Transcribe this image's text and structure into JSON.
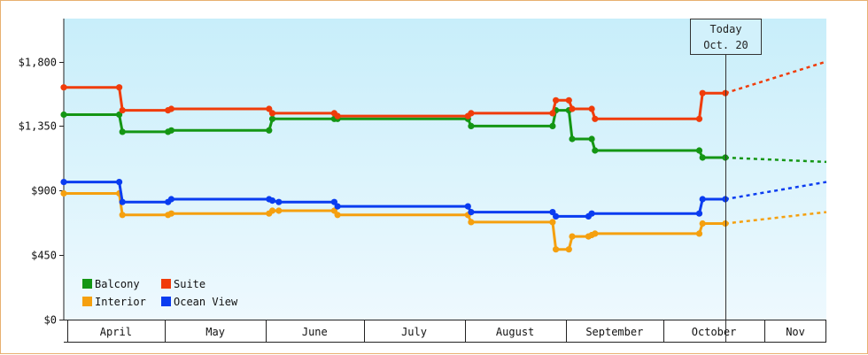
{
  "chart_data": {
    "type": "line",
    "y_unit": "USD",
    "ylim": [
      0,
      2100
    ],
    "yticks": [
      {
        "value": 0,
        "label": "$0"
      },
      {
        "value": 450,
        "label": "$450"
      },
      {
        "value": 900,
        "label": "$900"
      },
      {
        "value": 1350,
        "label": "$1,350"
      },
      {
        "value": 1800,
        "label": "$1,800"
      }
    ],
    "xlim": [
      "2016-03-31",
      "2016-11-20"
    ],
    "months": [
      {
        "label": "April",
        "start": "2016-04-01",
        "end": "2016-05-01"
      },
      {
        "label": "May",
        "start": "2016-05-01",
        "end": "2016-06-01"
      },
      {
        "label": "June",
        "start": "2016-06-01",
        "end": "2016-07-01"
      },
      {
        "label": "July",
        "start": "2016-07-01",
        "end": "2016-08-01"
      },
      {
        "label": "August",
        "start": "2016-08-01",
        "end": "2016-09-01"
      },
      {
        "label": "September",
        "start": "2016-09-01",
        "end": "2016-10-01"
      },
      {
        "label": "October",
        "start": "2016-10-01",
        "end": "2016-11-01"
      },
      {
        "label": "Nov",
        "start": "2016-11-01",
        "end": "2016-11-20"
      }
    ],
    "today": {
      "date": "2016-10-20",
      "line1": "Today",
      "line2": "Oct. 20"
    },
    "grid": "vertical month separators",
    "legend_position": "bottom-left",
    "series": [
      {
        "name": "Balcony",
        "color": "#149614",
        "points": [
          [
            "2016-03-31",
            1430
          ],
          [
            "2016-04-17",
            1430
          ],
          [
            "2016-04-18",
            1310
          ],
          [
            "2016-05-02",
            1310
          ],
          [
            "2016-05-03",
            1320
          ],
          [
            "2016-06-02",
            1320
          ],
          [
            "2016-06-03",
            1400
          ],
          [
            "2016-06-22",
            1400
          ],
          [
            "2016-06-23",
            1400
          ],
          [
            "2016-08-02",
            1400
          ],
          [
            "2016-08-03",
            1350
          ],
          [
            "2016-08-28",
            1350
          ],
          [
            "2016-08-29",
            1460
          ],
          [
            "2016-09-02",
            1460
          ],
          [
            "2016-09-03",
            1260
          ],
          [
            "2016-09-09",
            1260
          ],
          [
            "2016-09-10",
            1180
          ],
          [
            "2016-10-12",
            1180
          ],
          [
            "2016-10-13",
            1130
          ],
          [
            "2016-10-20",
            1130
          ]
        ],
        "forecast": [
          [
            "2016-10-20",
            1130
          ],
          [
            "2016-11-20",
            1100
          ]
        ]
      },
      {
        "name": "Suite",
        "color": "#f03c0a",
        "points": [
          [
            "2016-03-31",
            1620
          ],
          [
            "2016-04-17",
            1620
          ],
          [
            "2016-04-18",
            1460
          ],
          [
            "2016-05-02",
            1460
          ],
          [
            "2016-05-03",
            1470
          ],
          [
            "2016-06-02",
            1470
          ],
          [
            "2016-06-03",
            1440
          ],
          [
            "2016-06-22",
            1440
          ],
          [
            "2016-06-23",
            1420
          ],
          [
            "2016-08-02",
            1420
          ],
          [
            "2016-08-03",
            1440
          ],
          [
            "2016-08-28",
            1440
          ],
          [
            "2016-08-29",
            1530
          ],
          [
            "2016-09-02",
            1530
          ],
          [
            "2016-09-03",
            1470
          ],
          [
            "2016-09-09",
            1470
          ],
          [
            "2016-09-10",
            1400
          ],
          [
            "2016-10-12",
            1400
          ],
          [
            "2016-10-13",
            1580
          ],
          [
            "2016-10-20",
            1580
          ]
        ],
        "forecast": [
          [
            "2016-10-20",
            1580
          ],
          [
            "2016-11-20",
            1800
          ]
        ]
      },
      {
        "name": "Interior",
        "color": "#f5a00f",
        "points": [
          [
            "2016-03-31",
            880
          ],
          [
            "2016-04-17",
            880
          ],
          [
            "2016-04-18",
            730
          ],
          [
            "2016-05-02",
            730
          ],
          [
            "2016-05-03",
            740
          ],
          [
            "2016-06-02",
            740
          ],
          [
            "2016-06-03",
            760
          ],
          [
            "2016-06-05",
            760
          ],
          [
            "2016-06-22",
            760
          ],
          [
            "2016-06-23",
            730
          ],
          [
            "2016-08-02",
            730
          ],
          [
            "2016-08-03",
            680
          ],
          [
            "2016-08-28",
            680
          ],
          [
            "2016-08-29",
            490
          ],
          [
            "2016-09-02",
            490
          ],
          [
            "2016-09-03",
            580
          ],
          [
            "2016-09-08",
            580
          ],
          [
            "2016-09-09",
            590
          ],
          [
            "2016-09-10",
            600
          ],
          [
            "2016-10-12",
            600
          ],
          [
            "2016-10-13",
            670
          ],
          [
            "2016-10-20",
            670
          ]
        ],
        "forecast": [
          [
            "2016-10-20",
            670
          ],
          [
            "2016-11-20",
            750
          ]
        ]
      },
      {
        "name": "Ocean View",
        "color": "#0a3cf0",
        "points": [
          [
            "2016-03-31",
            960
          ],
          [
            "2016-04-17",
            960
          ],
          [
            "2016-04-18",
            820
          ],
          [
            "2016-05-02",
            820
          ],
          [
            "2016-05-03",
            840
          ],
          [
            "2016-06-02",
            840
          ],
          [
            "2016-06-03",
            830
          ],
          [
            "2016-06-05",
            820
          ],
          [
            "2016-06-22",
            820
          ],
          [
            "2016-06-23",
            790
          ],
          [
            "2016-08-02",
            790
          ],
          [
            "2016-08-03",
            750
          ],
          [
            "2016-08-28",
            750
          ],
          [
            "2016-08-29",
            720
          ],
          [
            "2016-09-08",
            720
          ],
          [
            "2016-09-09",
            740
          ],
          [
            "2016-10-12",
            740
          ],
          [
            "2016-10-13",
            840
          ],
          [
            "2016-10-20",
            840
          ]
        ],
        "forecast": [
          [
            "2016-10-20",
            840
          ],
          [
            "2016-11-20",
            960
          ]
        ]
      }
    ],
    "legend": [
      {
        "name": "Balcony",
        "color": "#149614"
      },
      {
        "name": "Suite",
        "color": "#f03c0a"
      },
      {
        "name": "Interior",
        "color": "#f5a00f"
      },
      {
        "name": "Ocean View",
        "color": "#0a3cf0"
      }
    ]
  }
}
